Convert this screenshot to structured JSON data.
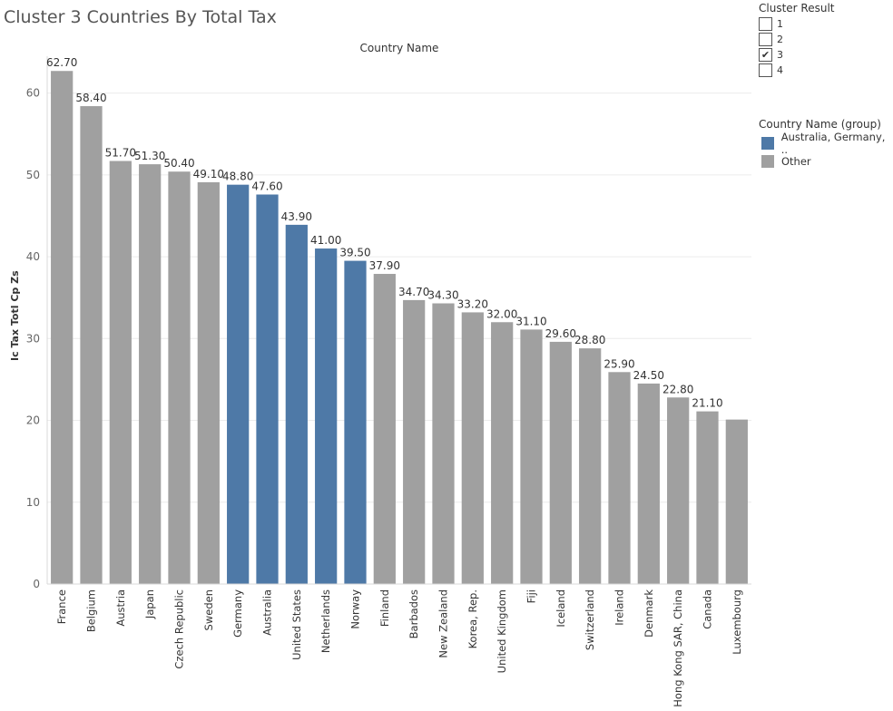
{
  "title": "Cluster 3 Countries By Total Tax",
  "column_header": "Country Name",
  "filter": {
    "title": "Cluster Result",
    "items": [
      {
        "label": "1",
        "checked": false
      },
      {
        "label": "2",
        "checked": false
      },
      {
        "label": "3",
        "checked": true
      },
      {
        "label": "4",
        "checked": false
      }
    ],
    "checkmark": "✔"
  },
  "legend": {
    "title": "Country Name (group)",
    "items": [
      {
        "label": "Australia, Germany, ..",
        "color": "#4e79a7"
      },
      {
        "label": "Other",
        "color": "#a0a0a0"
      }
    ]
  },
  "chart_data": {
    "type": "bar",
    "title": "Cluster 3 Countries By Total Tax",
    "xlabel": "Country Name",
    "ylabel": "Ic Tax Totl Cp Zs",
    "ylim": [
      0,
      65
    ],
    "yticks": [
      0,
      10,
      20,
      30,
      40,
      50,
      60
    ],
    "grid": true,
    "legend_position": "right",
    "categories": [
      "France",
      "Belgium",
      "Austria",
      "Japan",
      "Czech Republic",
      "Sweden",
      "Germany",
      "Australia",
      "United States",
      "Netherlands",
      "Norway",
      "Finland",
      "Barbados",
      "New Zealand",
      "Korea, Rep.",
      "United Kingdom",
      "Fiji",
      "Iceland",
      "Switzerland",
      "Ireland",
      "Denmark",
      "Hong Kong SAR, China",
      "Canada",
      "Luxembourg"
    ],
    "values": [
      62.7,
      58.4,
      51.7,
      51.3,
      50.4,
      49.1,
      48.8,
      47.6,
      43.9,
      41.0,
      39.5,
      37.9,
      34.7,
      34.3,
      33.2,
      32.0,
      31.1,
      29.6,
      28.8,
      25.9,
      24.5,
      22.8,
      21.1,
      20.1
    ],
    "data_labels": [
      "62.70",
      "58.40",
      "51.70",
      "51.30",
      "50.40",
      "49.10",
      "48.80",
      "47.60",
      "43.90",
      "41.00",
      "39.50",
      "37.90",
      "34.70",
      "34.30",
      "33.20",
      "32.00",
      "31.10",
      "29.60",
      "28.80",
      "25.90",
      "24.50",
      "22.80",
      "21.10",
      ""
    ],
    "groups": [
      "Other",
      "Other",
      "Other",
      "Other",
      "Other",
      "Other",
      "Australia, Germany, ..",
      "Australia, Germany, ..",
      "Australia, Germany, ..",
      "Australia, Germany, ..",
      "Australia, Germany, ..",
      "Other",
      "Other",
      "Other",
      "Other",
      "Other",
      "Other",
      "Other",
      "Other",
      "Other",
      "Other",
      "Other",
      "Other",
      "Other"
    ],
    "colors": {
      "Australia, Germany, ..": "#4e79a7",
      "Other": "#a0a0a0"
    }
  }
}
